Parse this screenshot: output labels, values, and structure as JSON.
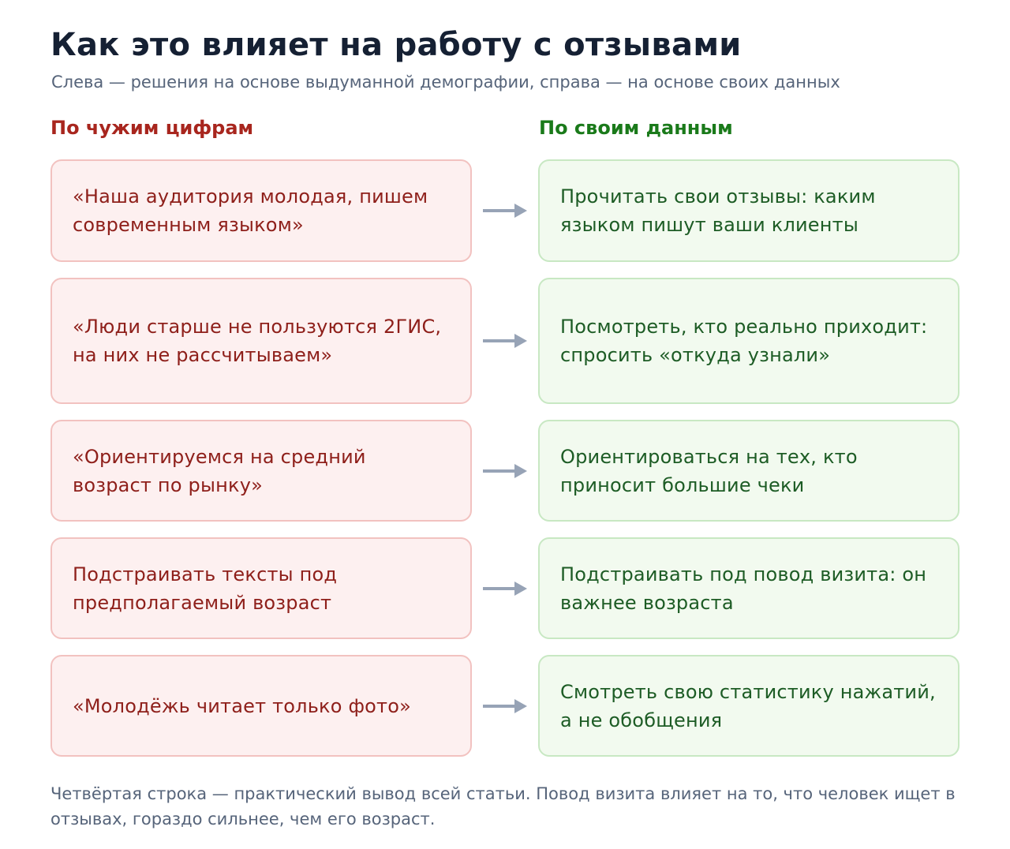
{
  "title": "Как это влияет на работу с отзывами",
  "subtitle": "Слева — решения на основе выдуманной демографии, справа — на основе своих данных",
  "columns": {
    "left": "По чужим цифрам",
    "right": "По своим данным"
  },
  "colors": {
    "bad_text": "#8e1f1a",
    "bad_bg": "#fdf0f0",
    "good_text": "#1d5c25",
    "good_bg": "#f2faef",
    "arrow": "#97a3b6"
  },
  "rows": [
    {
      "left": "«Наша аудитория молодая, пишем современным языком»",
      "right": "Прочитать свои отзывы: каким языком пишут ваши клиенты"
    },
    {
      "left": "«Люди старше не пользуются 2ГИС, на них не рассчитываем»",
      "right": "Посмотреть, кто реально приходит: спросить «откуда узнали»"
    },
    {
      "left": "«Ориентируемся на средний возраст по рынку»",
      "right": "Ориентироваться на тех, кто приносит большие чеки"
    },
    {
      "left": "Подстраивать тексты под предполагаемый возраст",
      "right": "Подстраивать под повод визита: он важнее возраста"
    },
    {
      "left": "«Молодёжь читает только фото»",
      "right": "Смотреть свою статистику нажатий, а не обобщения"
    }
  ],
  "arrow_icon": "arrow-right-icon",
  "footnote": "Четвёртая строка — практический вывод всей статьи. Повод визита влияет на то, что человек ищет в отзывах, гораздо сильнее, чем его возраст."
}
